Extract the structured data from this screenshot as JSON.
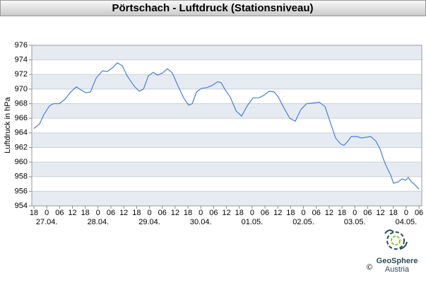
{
  "chart_data": {
    "type": "line",
    "title": "Pörtschach - Luftdruck (Stationsniveau)",
    "y_label": "Luftdruck in hPa",
    "x": [
      0,
      2.6,
      4.6,
      7.3,
      9.2,
      11.9,
      14.5,
      17.2,
      19.8,
      22.5,
      24.4,
      26.4,
      29.1,
      32,
      34.3,
      37,
      39,
      41.3,
      43.6,
      46.9,
      49.2,
      51.2,
      53.5,
      55.8,
      57.8,
      60.1,
      62.4,
      64.7,
      67.4,
      70,
      72.3,
      74,
      76,
      78.3,
      80.9,
      83.2,
      85.9,
      87.5,
      89.2,
      91.8,
      94.5,
      97.1,
      99.7,
      102.4,
      105,
      107.3,
      109.9,
      112.3,
      114.3,
      116.9,
      119.6,
      122.2,
      124.8,
      127.5,
      130.8,
      133.4,
      136.1,
      138.7,
      141,
      143.3,
      144.9,
      146.6,
      148.3,
      150.9,
      153.2,
      155.2,
      157.5,
      159.8,
      161.8,
      163.5,
      165.1,
      166.8,
      168.1,
      170.4,
      172.1,
      173.7,
      175,
      176.4,
      177.7,
      180
    ],
    "series": [
      {
        "name": "Luftdruck",
        "color": "#4a7fd4",
        "values": [
          964.6,
          965.2,
          966.5,
          967.7,
          968.0,
          968.0,
          968.6,
          969.6,
          970.3,
          969.8,
          969.5,
          969.6,
          971.5,
          972.5,
          972.4,
          973.0,
          973.6,
          973.2,
          971.8,
          970.4,
          969.7,
          970.0,
          971.8,
          972.3,
          971.9,
          972.2,
          972.8,
          972.2,
          970.4,
          968.8,
          967.8,
          968.0,
          969.6,
          970.1,
          970.2,
          970.5,
          971.0,
          970.9,
          970.0,
          968.9,
          967.0,
          966.3,
          967.7,
          968.8,
          968.8,
          969.1,
          969.7,
          969.6,
          968.9,
          967.4,
          966.0,
          965.6,
          967.2,
          968.0,
          968.1,
          968.2,
          967.6,
          965.3,
          963.3,
          962.5,
          962.3,
          962.8,
          963.5,
          963.5,
          963.3,
          963.4,
          963.5,
          962.9,
          961.8,
          960.3,
          959.2,
          958.2,
          957.1,
          957.3,
          957.7,
          957.5,
          957.9,
          957.3,
          957.0,
          956.3
        ]
      }
    ],
    "xlim": [
      -1,
      181.3
    ],
    "xticks": [
      {
        "value": 0,
        "label": "18"
      },
      {
        "value": 6,
        "label": "0"
      },
      {
        "value": 12,
        "label": "06"
      },
      {
        "value": 18,
        "label": "12"
      },
      {
        "value": 24,
        "label": "18"
      },
      {
        "value": 30,
        "label": "0"
      },
      {
        "value": 36,
        "label": "06"
      },
      {
        "value": 42,
        "label": "12"
      },
      {
        "value": 48,
        "label": "18"
      },
      {
        "value": 54,
        "label": "0"
      },
      {
        "value": 60,
        "label": "06"
      },
      {
        "value": 66,
        "label": "12"
      },
      {
        "value": 72,
        "label": "18"
      },
      {
        "value": 78,
        "label": "0"
      },
      {
        "value": 84,
        "label": "06"
      },
      {
        "value": 90,
        "label": "12"
      },
      {
        "value": 96,
        "label": "18"
      },
      {
        "value": 102,
        "label": "0"
      },
      {
        "value": 108,
        "label": "06"
      },
      {
        "value": 114,
        "label": "12"
      },
      {
        "value": 120,
        "label": "18"
      },
      {
        "value": 126,
        "label": "0"
      },
      {
        "value": 132,
        "label": "06"
      },
      {
        "value": 138,
        "label": "12"
      },
      {
        "value": 144,
        "label": "18"
      },
      {
        "value": 150,
        "label": "0"
      },
      {
        "value": 156,
        "label": "06"
      },
      {
        "value": 162,
        "label": "12"
      },
      {
        "value": 168,
        "label": "18"
      },
      {
        "value": 174,
        "label": "0"
      },
      {
        "value": 180,
        "label": "06"
      }
    ],
    "date_labels": [
      {
        "value": 6,
        "label": "27.04."
      },
      {
        "value": 30,
        "label": "28.04."
      },
      {
        "value": 54,
        "label": "29.04."
      },
      {
        "value": 78,
        "label": "30.04."
      },
      {
        "value": 102,
        "label": "01.05."
      },
      {
        "value": 126,
        "label": "02.05."
      },
      {
        "value": 150,
        "label": "03.05."
      },
      {
        "value": 174,
        "label": "04.05."
      }
    ],
    "ylim": [
      954,
      976
    ],
    "yticks": [
      954,
      956,
      958,
      960,
      962,
      964,
      966,
      968,
      970,
      972,
      974,
      976
    ],
    "grid": true,
    "logo": {
      "name": "GeoSphere",
      "sub": "Austria",
      "copyright": "©"
    }
  }
}
